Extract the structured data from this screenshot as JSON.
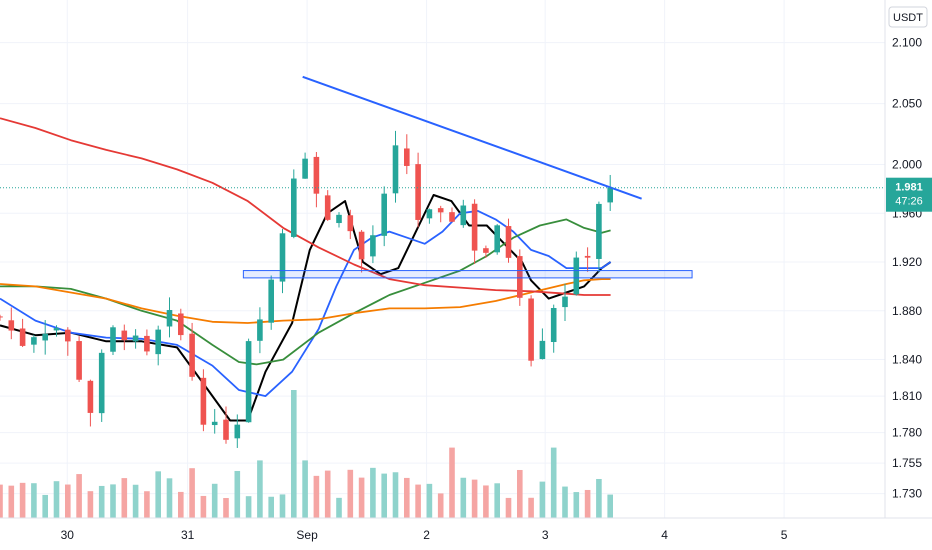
{
  "chart_data": {
    "type": "candlestick",
    "currency_label": "USDT",
    "y_axis": {
      "range": [
        1.71,
        2.135
      ],
      "ticks": [
        "2.100",
        "2.050",
        "2.000",
        "1.960",
        "1.920",
        "1.880",
        "1.840",
        "1.810",
        "1.780",
        "1.755",
        "1.730"
      ]
    },
    "x_axis": {
      "range": [
        0,
        1000
      ],
      "ticks": [
        {
          "label": "30",
          "x": 76
        },
        {
          "label": "31",
          "x": 212
        },
        {
          "label": "Sep",
          "x": 347
        },
        {
          "label": "2",
          "x": 482
        },
        {
          "label": "3",
          "x": 616
        },
        {
          "label": "4",
          "x": 751
        },
        {
          "label": "5",
          "x": 886
        }
      ]
    },
    "last_price": {
      "value": "1.981",
      "countdown": "47:26",
      "color": "#26a69a"
    },
    "colors": {
      "up": "#26a69a",
      "down": "#ef5350",
      "vol_up": "#8fd3cc",
      "vol_down": "#f5a5a3",
      "grid": "#f0f3fa"
    },
    "ohlc_anchors": {
      "x": [
        0,
        10,
        20,
        30,
        40,
        50,
        60,
        70,
        80,
        90,
        100,
        110,
        120,
        130,
        140,
        150,
        160,
        170,
        180,
        190,
        200,
        210,
        220,
        230,
        240,
        250,
        260,
        270,
        280,
        290,
        300,
        310,
        320,
        330,
        340,
        350,
        360,
        370,
        380,
        390,
        400,
        410,
        420,
        430,
        440,
        450,
        460,
        470,
        480,
        490,
        500,
        510,
        520,
        530,
        540,
        550,
        560,
        570,
        580,
        590,
        600,
        610,
        620,
        630,
        640,
        650,
        660,
        670,
        680,
        690,
        700
      ],
      "close": [
        1.875,
        1.865,
        1.86,
        1.855,
        1.868,
        1.87,
        1.872,
        1.86,
        1.845,
        1.83,
        1.795,
        1.82,
        1.85,
        1.862,
        1.868,
        1.855,
        1.83,
        1.842,
        1.86,
        1.868,
        1.865,
        1.85,
        1.82,
        1.8,
        1.77,
        1.79,
        1.78,
        1.8,
        1.86,
        1.89,
        1.88,
        1.92,
        1.95,
        1.99,
        2.03,
        2.0,
        1.97,
        1.95,
        1.975,
        1.96,
        1.93,
        1.92,
        1.94,
        1.955,
        1.98,
        2.015,
        2.0,
        1.96,
        1.95,
        1.955,
        1.945,
        1.96,
        1.98,
        1.94,
        1.935,
        1.93,
        1.94,
        1.935,
        1.925,
        1.895,
        1.85,
        1.86,
        1.88,
        1.895,
        1.9,
        1.91,
        1.92,
        1.955,
        1.98,
        1.98,
        1.98
      ]
    },
    "indicators": [
      {
        "color": "#000000",
        "x": [
          0,
          40,
          80,
          120,
          160,
          200,
          230,
          260,
          280,
          300,
          330,
          350,
          370,
          390,
          410,
          430,
          450,
          470,
          490,
          510,
          530,
          550,
          570,
          590,
          600,
          620,
          640,
          660,
          680,
          690
        ],
        "y": [
          1.868,
          1.86,
          1.862,
          1.855,
          1.855,
          1.85,
          1.82,
          1.79,
          1.79,
          1.83,
          1.87,
          1.93,
          1.96,
          1.97,
          1.92,
          1.91,
          1.915,
          1.945,
          1.975,
          1.97,
          1.95,
          1.95,
          1.935,
          1.92,
          1.905,
          1.89,
          1.895,
          1.9,
          1.915,
          1.92
        ]
      },
      {
        "color": "#2962ff",
        "x": [
          0,
          40,
          80,
          120,
          160,
          200,
          240,
          270,
          300,
          330,
          360,
          380,
          400,
          420,
          440,
          460,
          480,
          500,
          520,
          540,
          560,
          580,
          600,
          620,
          640,
          660,
          680,
          690
        ],
        "y": [
          1.89,
          1.872,
          1.862,
          1.858,
          1.857,
          1.852,
          1.835,
          1.815,
          1.81,
          1.83,
          1.865,
          1.9,
          1.93,
          1.94,
          1.945,
          1.94,
          1.935,
          1.945,
          1.96,
          1.962,
          1.955,
          1.945,
          1.93,
          1.925,
          1.915,
          1.915,
          1.915,
          1.92
        ]
      },
      {
        "color": "#388e3c",
        "x": [
          0,
          40,
          80,
          120,
          160,
          200,
          240,
          270,
          290,
          320,
          360,
          400,
          440,
          480,
          520,
          550,
          580,
          610,
          640,
          660,
          680,
          690
        ],
        "y": [
          1.9,
          1.9,
          1.898,
          1.89,
          1.88,
          1.872,
          1.852,
          1.838,
          1.836,
          1.84,
          1.862,
          1.878,
          1.893,
          1.903,
          1.913,
          1.925,
          1.94,
          1.95,
          1.955,
          1.948,
          1.944,
          1.946
        ]
      },
      {
        "color": "#f57c00",
        "x": [
          0,
          40,
          80,
          120,
          160,
          200,
          240,
          280,
          320,
          360,
          400,
          440,
          480,
          520,
          560,
          600,
          640,
          660,
          680,
          690
        ],
        "y": [
          1.902,
          1.9,
          1.895,
          1.89,
          1.882,
          1.876,
          1.871,
          1.87,
          1.872,
          1.873,
          1.878,
          1.882,
          1.882,
          1.883,
          1.888,
          1.895,
          1.902,
          1.905,
          1.906,
          1.906
        ]
      },
      {
        "color": "#e53935",
        "x": [
          0,
          40,
          80,
          120,
          160,
          200,
          240,
          280,
          320,
          360,
          400,
          440,
          480,
          520,
          560,
          600,
          640,
          660,
          680,
          690
        ],
        "y": [
          2.038,
          2.03,
          2.02,
          2.012,
          2.005,
          1.996,
          1.985,
          1.97,
          1.948,
          1.932,
          1.918,
          1.906,
          1.901,
          1.899,
          1.897,
          1.896,
          1.894,
          1.893,
          1.893,
          1.893
        ]
      }
    ],
    "trendline": {
      "color": "#2962ff",
      "x1": 342,
      "y1": 2.072,
      "x2": 725,
      "y2": 1.972
    },
    "support_zone": {
      "color": "#2962ff",
      "fill": "rgba(41,98,255,0.12)",
      "x1": 275,
      "x2": 782,
      "y_top": 1.913,
      "y_bottom": 1.907
    }
  }
}
